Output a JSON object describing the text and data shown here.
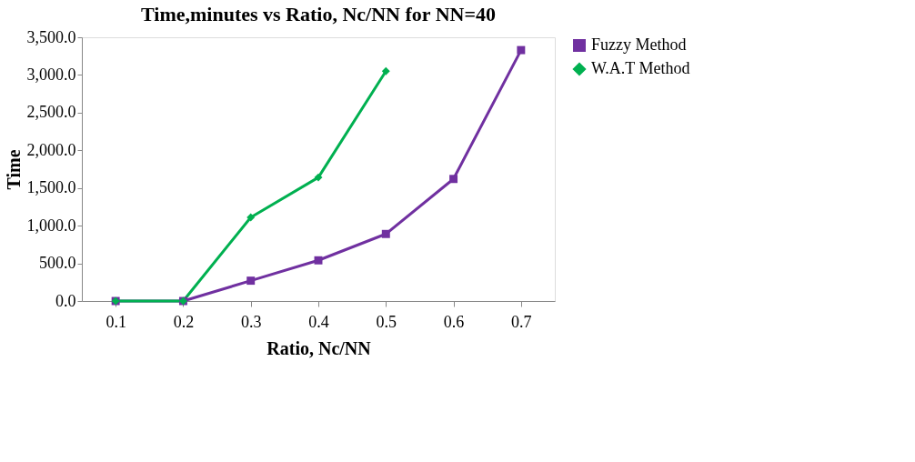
{
  "chart_data": {
    "type": "line",
    "title": "Time,minutes vs Ratio, Nc/NN for NN=40",
    "xlabel": "Ratio, Nc/NN",
    "ylabel": "Time",
    "categories": [
      "0.1",
      "0.2",
      "0.3",
      "0.4",
      "0.5",
      "0.6",
      "0.7"
    ],
    "series": [
      {
        "name": "Fuzzy Method",
        "color": "#7030a0",
        "marker": "square",
        "values": [
          0,
          0,
          270,
          540,
          890,
          1620,
          3330
        ]
      },
      {
        "name": "W.A.T Method",
        "color": "#00b050",
        "marker": "diamond",
        "values": [
          0,
          0,
          1110,
          1640,
          3050,
          null,
          null
        ]
      }
    ],
    "ylim": [
      0,
      3500
    ],
    "yticks": [
      {
        "value": 0,
        "label": "0.0"
      },
      {
        "value": 500,
        "label": "500.0"
      },
      {
        "value": 1000,
        "label": "1,000.0"
      },
      {
        "value": 1500,
        "label": "1,500.0"
      },
      {
        "value": 2000,
        "label": "2,000.0"
      },
      {
        "value": 2500,
        "label": "2,500.0"
      },
      {
        "value": 3000,
        "label": "3,000.0"
      },
      {
        "value": 3500,
        "label": "3,500.0"
      }
    ],
    "grid": false,
    "legend": "right",
    "line_style": "solid"
  }
}
